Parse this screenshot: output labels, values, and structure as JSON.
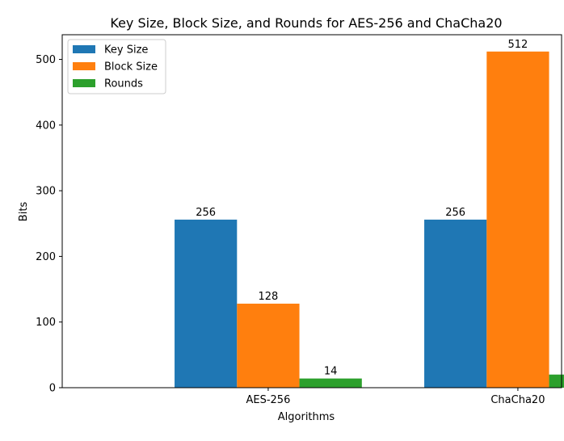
{
  "chart_data": {
    "type": "bar",
    "title": "Key Size, Block Size, and Rounds for AES-256 and ChaCha20",
    "xlabel": "Algorithms",
    "ylabel": "Bits",
    "categories": [
      "AES-256",
      "ChaCha20"
    ],
    "series": [
      {
        "name": "Key Size",
        "values": [
          256,
          256
        ],
        "color": "#1f77b4"
      },
      {
        "name": "Block Size",
        "values": [
          128,
          512
        ],
        "color": "#ff7f0e"
      },
      {
        "name": "Rounds",
        "values": [
          14,
          20
        ],
        "color": "#2ca02c"
      }
    ],
    "ylim": [
      0,
      537.6
    ],
    "yticks": [
      0,
      100,
      200,
      300,
      400,
      500
    ],
    "grid": false,
    "legend_position": "top-left",
    "data_labels": true
  }
}
